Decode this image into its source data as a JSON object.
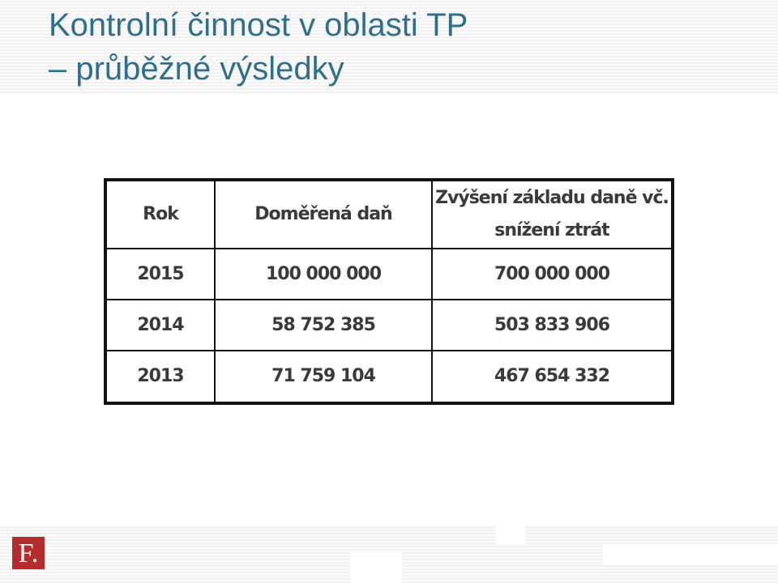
{
  "header": {
    "title": [
      "Kontrolní činnost v oblasti TP",
      "– průběžné výsledky"
    ]
  },
  "table": {
    "columns": [
      "Rok",
      "Doměřená daň",
      "Zvýšení základu daně vč. snížení ztrát"
    ],
    "rows": [
      [
        "2015",
        "100 000 000",
        "700 000 000"
      ],
      [
        "2014",
        "58 752 385",
        "503 833 906"
      ],
      [
        "2013",
        "71 759 104",
        "467 654 332"
      ]
    ]
  },
  "footer": {
    "logo": "F."
  }
}
